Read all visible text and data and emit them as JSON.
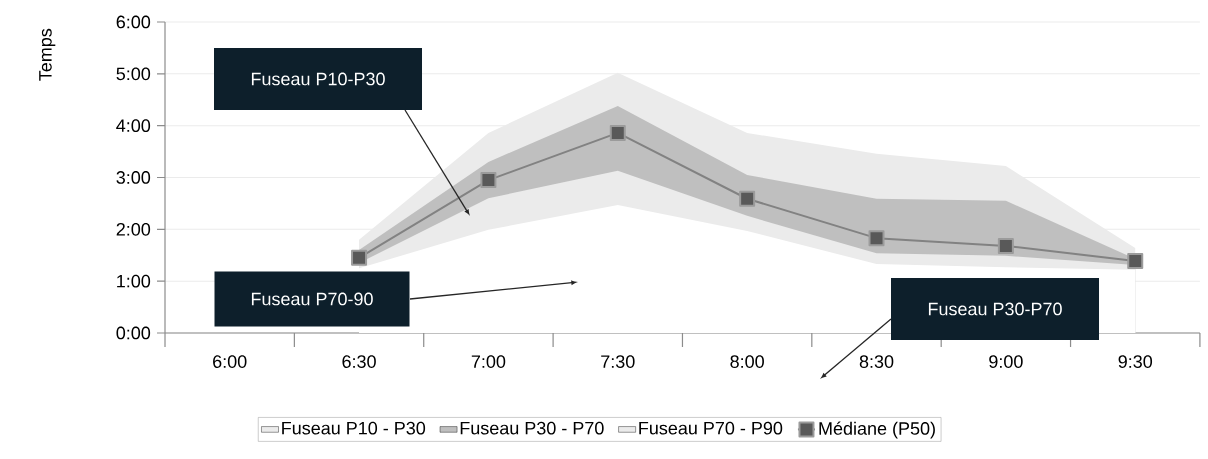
{
  "chart_data": {
    "type": "area",
    "ylabel": "Temps",
    "categories": [
      "6:00",
      "6:30",
      "7:00",
      "7:30",
      "8:00",
      "8:30",
      "9:00",
      "9:30"
    ],
    "series": [
      {
        "color": "#ffffff",
        "values": [
          null,
          1.25,
          1.99,
          2.47,
          1.97,
          1.33,
          1.27,
          1.22
        ]
      },
      {
        "name": "Fuseau P10 - P30",
        "color": "#ebebeb",
        "values": [
          null,
          1.35,
          2.6,
          3.13,
          2.26,
          1.54,
          1.49,
          1.31
        ]
      },
      {
        "name": "Fuseau P30 - P70",
        "color": "#bfbfbf",
        "values": [
          null,
          1.6,
          3.3,
          4.38,
          3.05,
          2.59,
          2.55,
          1.43
        ]
      },
      {
        "name": "Fuseau P70 - P90",
        "color": "#ebebeb",
        "values": [
          null,
          1.8,
          3.86,
          5.02,
          3.86,
          3.46,
          3.22,
          1.64
        ]
      },
      {
        "name": "Médiane (P50)",
        "type": "line",
        "marker": "square",
        "color": "#595959",
        "values": [
          null,
          1.45,
          2.95,
          3.86,
          2.59,
          1.83,
          1.68,
          1.39
        ]
      }
    ],
    "ylim": [
      0,
      6
    ],
    "yticks": [
      {
        "value": 0,
        "label": "0:00"
      },
      {
        "value": 1,
        "label": "1:00"
      },
      {
        "value": 2,
        "label": "2:00"
      },
      {
        "value": 3,
        "label": "3:00"
      },
      {
        "value": 4,
        "label": "4:00"
      },
      {
        "value": 5,
        "label": "5:00"
      },
      {
        "value": 6,
        "label": "6:00"
      }
    ],
    "grid": "y",
    "legend": "bottom",
    "annotations": [
      "Fuseau P70-90",
      "Fuseau P30-P70",
      "Fuseau P10-P30"
    ]
  }
}
